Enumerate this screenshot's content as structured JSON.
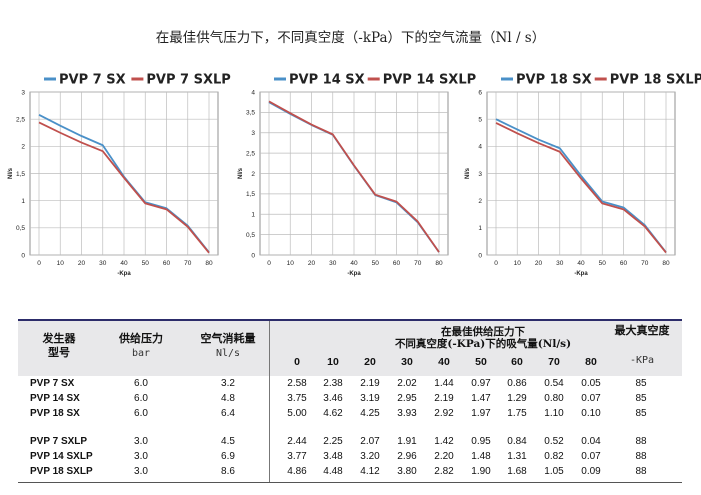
{
  "title": "在最佳供气压力下，不同真空度（-kPa）下的空气流量（Nl / s）",
  "colors": {
    "sx": "#4a90c8",
    "sxlp": "#c0504d"
  },
  "chart_data": [
    {
      "type": "line",
      "x": [
        0,
        10,
        20,
        30,
        40,
        50,
        60,
        70,
        80
      ],
      "xlabel": "-Kpa",
      "ylabel": "Nl/s",
      "xlim": [
        0,
        80
      ],
      "ylim": [
        0,
        3
      ],
      "yticks": [
        0,
        0.5,
        1,
        1.5,
        2,
        2.5,
        3
      ],
      "ytick_labels": [
        "0",
        "0,5",
        "1",
        "1,5",
        "2",
        "2,5",
        "3"
      ],
      "grid": true,
      "legend_position": "top",
      "series": [
        {
          "name": "PVP 7 SX",
          "values": [
            2.58,
            2.38,
            2.19,
            2.02,
            1.44,
            0.97,
            0.86,
            0.54,
            0.05
          ]
        },
        {
          "name": "PVP 7 SXLP",
          "values": [
            2.44,
            2.25,
            2.07,
            1.91,
            1.42,
            0.95,
            0.84,
            0.52,
            0.04
          ]
        }
      ]
    },
    {
      "type": "line",
      "x": [
        0,
        10,
        20,
        30,
        40,
        50,
        60,
        70,
        80
      ],
      "xlabel": "-Kpa",
      "ylabel": "Nl/s",
      "xlim": [
        0,
        80
      ],
      "ylim": [
        0,
        4
      ],
      "yticks": [
        0,
        0.5,
        1,
        1.5,
        2,
        2.5,
        3,
        3.5,
        4
      ],
      "ytick_labels": [
        "0",
        "0,5",
        "1",
        "1,5",
        "2",
        "2,5",
        "3",
        "3,5",
        "4"
      ],
      "grid": true,
      "legend_position": "top",
      "series": [
        {
          "name": "PVP 14 SX",
          "values": [
            3.75,
            3.46,
            3.19,
            2.95,
            2.19,
            1.47,
            1.29,
            0.8,
            0.07
          ]
        },
        {
          "name": "PVP 14 SXLP",
          "values": [
            3.77,
            3.48,
            3.2,
            2.96,
            2.2,
            1.48,
            1.31,
            0.82,
            0.07
          ]
        }
      ]
    },
    {
      "type": "line",
      "x": [
        0,
        10,
        20,
        30,
        40,
        50,
        60,
        70,
        80
      ],
      "xlabel": "-Kpa",
      "ylabel": "Nl/s",
      "xlim": [
        0,
        80
      ],
      "ylim": [
        0,
        6
      ],
      "yticks": [
        0,
        1,
        2,
        3,
        4,
        5,
        6
      ],
      "ytick_labels": [
        "0",
        "1",
        "2",
        "3",
        "4",
        "5",
        "6"
      ],
      "grid": true,
      "legend_position": "top",
      "series": [
        {
          "name": "PVP 18 SX",
          "values": [
            5.0,
            4.62,
            4.25,
            3.93,
            2.92,
            1.97,
            1.75,
            1.1,
            0.1
          ]
        },
        {
          "name": "PVP 18 SXLP",
          "values": [
            4.86,
            4.48,
            4.12,
            3.8,
            2.82,
            1.9,
            1.68,
            1.05,
            0.09
          ]
        }
      ]
    }
  ],
  "table": {
    "headers": {
      "generator": [
        "发生器",
        "型号"
      ],
      "supply_pressure": "供给压力",
      "supply_unit": "bar",
      "air_consumption": "空气消耗量",
      "consumption_unit": "Nl/s",
      "flow_title": [
        "在最佳供给压力下",
        "不同真空度(-KPa)下的吸气量(Nl/s)"
      ],
      "flow_levels": [
        "0",
        "10",
        "20",
        "30",
        "40",
        "50",
        "60",
        "70",
        "80"
      ],
      "max_vacuum": "最大真空度",
      "max_vacuum_unit": "-KPa"
    },
    "rows": [
      {
        "model": "PVP 7 SX",
        "pressure": "6.0",
        "consumption": "3.2",
        "flows": [
          "2.58",
          "2.38",
          "2.19",
          "2.02",
          "1.44",
          "0.97",
          "0.86",
          "0.54",
          "0.05"
        ],
        "max_vacuum": "85"
      },
      {
        "model": "PVP 14 SX",
        "pressure": "6.0",
        "consumption": "4.8",
        "flows": [
          "3.75",
          "3.46",
          "3.19",
          "2.95",
          "2.19",
          "1.47",
          "1.29",
          "0.80",
          "0.07"
        ],
        "max_vacuum": "85"
      },
      {
        "model": "PVP 18 SX",
        "pressure": "6.0",
        "consumption": "6.4",
        "flows": [
          "5.00",
          "4.62",
          "4.25",
          "3.93",
          "2.92",
          "1.97",
          "1.75",
          "1.10",
          "0.10"
        ],
        "max_vacuum": "85"
      },
      {
        "model": "PVP 7 SXLP",
        "pressure": "3.0",
        "consumption": "4.5",
        "flows": [
          "2.44",
          "2.25",
          "2.07",
          "1.91",
          "1.42",
          "0.95",
          "0.84",
          "0.52",
          "0.04"
        ],
        "max_vacuum": "88"
      },
      {
        "model": "PVP 14 SXLP",
        "pressure": "3.0",
        "consumption": "6.9",
        "flows": [
          "3.77",
          "3.48",
          "3.20",
          "2.96",
          "2.20",
          "1.48",
          "1.31",
          "0.82",
          "0.07"
        ],
        "max_vacuum": "88"
      },
      {
        "model": "PVP 18 SXLP",
        "pressure": "3.0",
        "consumption": "8.6",
        "flows": [
          "4.86",
          "4.48",
          "4.12",
          "3.80",
          "2.82",
          "1.90",
          "1.68",
          "1.05",
          "0.09"
        ],
        "max_vacuum": "88"
      }
    ]
  }
}
